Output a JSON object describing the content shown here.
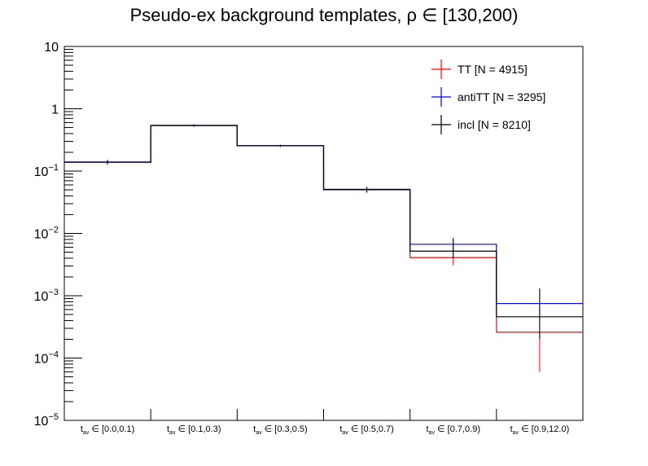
{
  "chart_data": {
    "type": "step-histogram",
    "title": "Pseudo-ex background templates,   ρ ∈ [130,200)",
    "y_scale": "log",
    "ylim": [
      1e-05,
      10
    ],
    "y_ticks": [
      {
        "value": 10,
        "base": "10",
        "exp": ""
      },
      {
        "value": 1,
        "base": "1",
        "exp": ""
      },
      {
        "value": 0.1,
        "base": "10",
        "exp": "−1"
      },
      {
        "value": 0.01,
        "base": "10",
        "exp": "−2"
      },
      {
        "value": 0.001,
        "base": "10",
        "exp": "−3"
      },
      {
        "value": 0.0001,
        "base": "10",
        "exp": "−4"
      },
      {
        "value": 1e-05,
        "base": "10",
        "exp": "−5"
      }
    ],
    "categories": [
      {
        "prefix": "t",
        "sub": "av",
        "range": " ∈ [0.0,0.1)"
      },
      {
        "prefix": "t",
        "sub": "av",
        "range": " ∈ [0.1,0.3)"
      },
      {
        "prefix": "t",
        "sub": "av",
        "range": " ∈ [0.3,0.5)"
      },
      {
        "prefix": "t",
        "sub": "av",
        "range": " ∈ [0.5,0.7)"
      },
      {
        "prefix": "t",
        "sub": "av",
        "range": " ∈ [0.7,0.9)"
      },
      {
        "prefix": "t",
        "sub": "av",
        "range": " ∈ [0.9,12.0)"
      }
    ],
    "series": [
      {
        "name": "TT [N = 4915]",
        "color": "#ff0000",
        "values": [
          0.138,
          0.54,
          0.255,
          0.05,
          0.0041,
          0.00026
        ],
        "err_low": [
          0.126,
          0.52,
          0.245,
          0.045,
          0.0031,
          6e-05
        ],
        "err_high": [
          0.15,
          0.56,
          0.265,
          0.055,
          0.0055,
          0.00062
        ]
      },
      {
        "name": "antiTT [N = 3295]",
        "color": "#0000ff",
        "values": [
          0.14,
          0.54,
          0.255,
          0.051,
          0.0067,
          0.00075
        ],
        "err_low": [
          0.128,
          0.52,
          0.245,
          0.046,
          0.005,
          0.0004
        ],
        "err_high": [
          0.152,
          0.56,
          0.265,
          0.056,
          0.0085,
          0.0013
        ]
      },
      {
        "name": "incl [N = 8210]",
        "color": "#000000",
        "values": [
          0.139,
          0.54,
          0.255,
          0.0505,
          0.0052,
          0.00046
        ],
        "err_low": [
          0.13,
          0.52,
          0.245,
          0.046,
          0.004,
          0.0002
        ],
        "err_high": [
          0.148,
          0.56,
          0.265,
          0.055,
          0.008,
          0.0013
        ]
      }
    ],
    "legend": "top-right"
  }
}
